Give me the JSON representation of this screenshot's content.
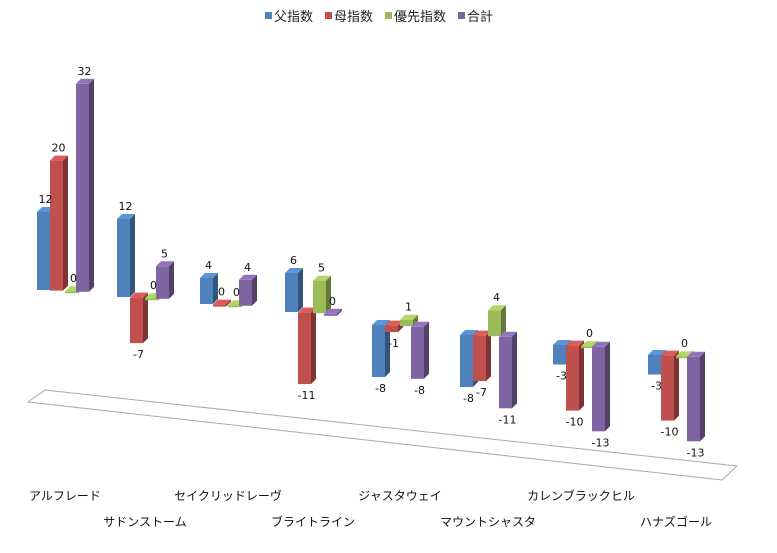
{
  "chart_data": {
    "type": "bar",
    "title": "",
    "xlabel": "",
    "ylabel": "",
    "grid": false,
    "legend_position": "top",
    "categories": [
      "アルフレード",
      "サドンストーム",
      "セイクリッドレーヴ",
      "ブライトライン",
      "ジャスタウェイ",
      "マウントシャスタ",
      "カレンブラックヒル",
      "ハナズゴール"
    ],
    "series": [
      {
        "name": "父指数",
        "color": "#4F81BD",
        "values": [
          12,
          12,
          4,
          6,
          -8,
          -8,
          -3,
          -3
        ]
      },
      {
        "name": "母指数",
        "color": "#C0504D",
        "values": [
          20,
          -7,
          0,
          -11,
          -1,
          -7,
          -10,
          -10
        ]
      },
      {
        "name": "優先指数",
        "color": "#9BBB59",
        "values": [
          0,
          0,
          0,
          5,
          1,
          4,
          0,
          0
        ]
      },
      {
        "name": "合計",
        "color": "#8064A2",
        "values": [
          32,
          5,
          4,
          0,
          -8,
          -11,
          -13,
          -13
        ]
      }
    ]
  }
}
